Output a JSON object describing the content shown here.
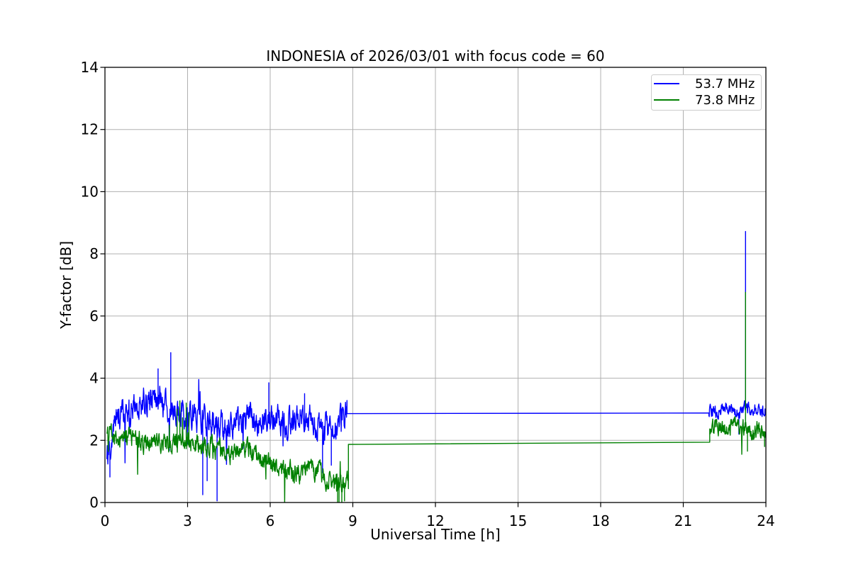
{
  "chart_data": {
    "type": "line",
    "title": "INDONESIA of 2026/03/01 with focus code = 60",
    "xlabel": "Universal Time [h]",
    "ylabel": "Y-factor [dB]",
    "xlim": [
      0,
      24
    ],
    "ylim": [
      0,
      14
    ],
    "xticks": [
      0,
      3,
      6,
      9,
      12,
      15,
      18,
      21,
      24
    ],
    "yticks": [
      0,
      2,
      4,
      6,
      8,
      10,
      12,
      14
    ],
    "grid": true,
    "grid_color": "#b0b0b0",
    "axis_color": "#000000",
    "background_color": "#ffffff",
    "legend": {
      "position": "upper right",
      "border_color": "#cccccc",
      "entries": [
        {
          "label": "53.7 MHz",
          "color": "#0000ff"
        },
        {
          "label": "73.8 MHz",
          "color": "#008000"
        }
      ]
    },
    "series": [
      {
        "name": "53.7 MHz",
        "color": "#0000ff",
        "segments": [
          {
            "kind": "noisy",
            "x0": 0.07,
            "x1": 8.79,
            "amp": 0.42,
            "trend": [
              [
                0.07,
                1.7
              ],
              [
                0.18,
                1.35
              ],
              [
                0.35,
                2.5
              ],
              [
                0.6,
                2.95
              ],
              [
                1.0,
                3.0
              ],
              [
                1.35,
                3.25
              ],
              [
                1.6,
                3.3
              ],
              [
                1.75,
                3.25
              ],
              [
                1.95,
                3.45
              ],
              [
                2.2,
                3.1
              ],
              [
                2.45,
                3.1
              ],
              [
                2.7,
                2.95
              ],
              [
                3.0,
                2.8
              ],
              [
                3.3,
                2.75
              ],
              [
                3.6,
                2.6
              ],
              [
                3.9,
                2.55
              ],
              [
                4.2,
                2.45
              ],
              [
                4.6,
                2.55
              ],
              [
                5.0,
                2.6
              ],
              [
                5.3,
                2.75
              ],
              [
                5.6,
                2.55
              ],
              [
                5.95,
                2.8
              ],
              [
                6.3,
                2.6
              ],
              [
                6.6,
                2.5
              ],
              [
                6.9,
                2.6
              ],
              [
                7.25,
                2.8
              ],
              [
                7.6,
                2.45
              ],
              [
                7.9,
                2.4
              ],
              [
                8.2,
                2.35
              ],
              [
                8.5,
                2.55
              ],
              [
                8.7,
                2.85
              ],
              [
                8.79,
                2.95
              ]
            ],
            "spikes": [
              [
                0.18,
                0.82
              ],
              [
                1.93,
                4.3
              ],
              [
                2.39,
                4.82
              ],
              [
                3.55,
                0.25
              ],
              [
                3.71,
                0.7
              ],
              [
                4.07,
                0.05
              ],
              [
                5.95,
                3.85
              ],
              [
                7.25,
                3.5
              ],
              [
                7.9,
                0.95
              ],
              [
                8.22,
                1.2
              ]
            ]
          },
          {
            "kind": "flat",
            "x0": 8.79,
            "x1": 21.93,
            "y0": 2.86,
            "y1": 2.88
          },
          {
            "kind": "noisy",
            "x0": 21.93,
            "x1": 24.0,
            "amp": 0.2,
            "trend": [
              [
                21.93,
                2.95
              ],
              [
                22.2,
                2.9
              ],
              [
                22.5,
                3.05
              ],
              [
                22.8,
                2.95
              ],
              [
                23.05,
                2.85
              ],
              [
                23.3,
                3.05
              ],
              [
                23.55,
                3.0
              ],
              [
                23.8,
                3.0
              ],
              [
                24.0,
                2.95
              ]
            ],
            "spikes": [
              [
                23.02,
                2.2
              ],
              [
                23.26,
                8.72
              ]
            ]
          }
        ]
      },
      {
        "name": "73.8 MHz",
        "color": "#008000",
        "segments": [
          {
            "kind": "noisy",
            "x0": 0.07,
            "x1": 8.84,
            "amp": 0.3,
            "trend": [
              [
                0.07,
                2.3
              ],
              [
                0.4,
                2.05
              ],
              [
                0.9,
                2.05
              ],
              [
                1.4,
                1.95
              ],
              [
                1.9,
                1.95
              ],
              [
                2.4,
                1.9
              ],
              [
                2.75,
                2.0
              ],
              [
                3.1,
                1.9
              ],
              [
                3.5,
                1.8
              ],
              [
                3.9,
                1.75
              ],
              [
                4.3,
                1.6
              ],
              [
                4.7,
                1.6
              ],
              [
                5.1,
                1.75
              ],
              [
                5.45,
                1.6
              ],
              [
                5.8,
                1.35
              ],
              [
                6.1,
                1.15
              ],
              [
                6.5,
                1.0
              ],
              [
                6.9,
                0.95
              ],
              [
                7.3,
                1.1
              ],
              [
                7.6,
                1.0
              ],
              [
                8.0,
                0.85
              ],
              [
                8.3,
                0.7
              ],
              [
                8.55,
                0.55
              ],
              [
                8.75,
                0.65
              ],
              [
                8.84,
                1.1
              ]
            ],
            "spikes": [
              [
                2.62,
                3.0
              ],
              [
                2.72,
                3.27
              ],
              [
                2.95,
                3.2
              ],
              [
                3.05,
                2.9
              ],
              [
                8.45,
                0.0
              ],
              [
                8.5,
                0.0
              ],
              [
                8.6,
                0.0
              ],
              [
                8.7,
                0.05
              ]
            ]
          },
          {
            "kind": "flat",
            "x0": 8.84,
            "x1": 21.96,
            "y0": 1.87,
            "y1": 1.94
          },
          {
            "kind": "noisy",
            "x0": 21.96,
            "x1": 24.0,
            "amp": 0.26,
            "trend": [
              [
                21.96,
                2.3
              ],
              [
                22.2,
                2.45
              ],
              [
                22.5,
                2.3
              ],
              [
                22.8,
                2.5
              ],
              [
                23.1,
                2.35
              ],
              [
                23.3,
                2.45
              ],
              [
                23.5,
                2.2
              ],
              [
                23.75,
                2.4
              ],
              [
                24.0,
                2.25
              ]
            ],
            "spikes": [
              [
                23.26,
                6.76
              ],
              [
                23.33,
                1.65
              ],
              [
                23.95,
                1.8
              ]
            ]
          }
        ]
      }
    ]
  }
}
